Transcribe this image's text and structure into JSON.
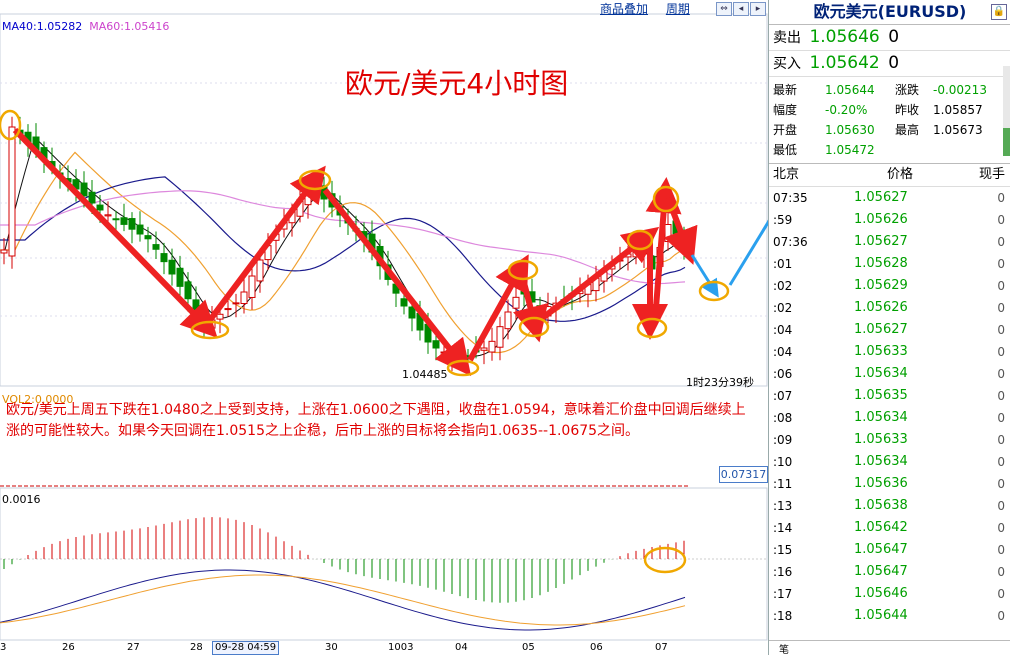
{
  "toolbar": {
    "overlay": "商品叠加",
    "period": "周期"
  },
  "ma_labels": {
    "ma40": "MA40:1.05282",
    "ma60": "MA60:1.05416",
    "ma40_color": "#0000cc",
    "ma60_color": "#cc44cc"
  },
  "annotation_title": "欧元/美元4小时图",
  "timer": "1时23分39秒",
  "low_label": "1.04485",
  "vol_label": "VOL2:0.0000",
  "commentary": "欧元/美元上周五下跌在1.0480之上受到支持，上涨在1.0600之下遇阻，收盘在1.0594，意味着汇价盘中回调后继续上涨的可能性较大。如果今天回调在1.0515之上企稳，后市上涨的目标将会指向1.0635--1.0675之间。",
  "vol_box": "0.07317",
  "macd_label": "0.0016",
  "x_axis": {
    "labels": [
      "3",
      "26",
      "27",
      "28",
      "30",
      "1003",
      "04",
      "05",
      "06",
      "07"
    ],
    "cursor_label": "09-28 04:59"
  },
  "chart_data": {
    "type": "candlestick",
    "symbol": "EURUSD",
    "timeframe": "4H",
    "low_marked": 1.04485,
    "ma40_last": 1.05282,
    "ma60_last": 1.05416,
    "colors": {
      "up": "#d40000",
      "down": "#008800",
      "ma_blue": "#1a1a8c",
      "ma_orange": "#f0a030",
      "ma_purple": "#dd88dd",
      "arrow": "#ee2222",
      "forecast": "#2aa0ee",
      "circle": "#f0a800"
    }
  },
  "panel": {
    "title": "欧元美元(EURUSD)",
    "sell_label": "卖出",
    "sell_price": "1.05646",
    "sell_qty": "0",
    "buy_label": "买入",
    "buy_price": "1.05642",
    "buy_qty": "0",
    "stats": [
      {
        "l1": "最新",
        "v1": "1.05644",
        "l2": "涨跌",
        "v2": "-0.00213"
      },
      {
        "l1": "幅度",
        "v1": "-0.20%",
        "l2": "昨收",
        "v2": "1.05857"
      },
      {
        "l1": "开盘",
        "v1": "1.05630",
        "l2": "最高",
        "v2": "1.05673"
      },
      {
        "l1": "最低",
        "v1": "1.05472",
        "l2": "",
        "v2": ""
      }
    ],
    "ticks_header": {
      "time": "北京",
      "price": "价格",
      "qty": "现手"
    },
    "ticks": [
      {
        "t": "07:35",
        "p": "1.05627",
        "q": "0"
      },
      {
        "t": ":59",
        "p": "1.05626",
        "q": "0"
      },
      {
        "t": "07:36",
        "p": "1.05627",
        "q": "0"
      },
      {
        "t": ":01",
        "p": "1.05628",
        "q": "0"
      },
      {
        "t": ":02",
        "p": "1.05629",
        "q": "0"
      },
      {
        "t": ":02",
        "p": "1.05626",
        "q": "0"
      },
      {
        "t": ":04",
        "p": "1.05627",
        "q": "0"
      },
      {
        "t": ":04",
        "p": "1.05633",
        "q": "0"
      },
      {
        "t": ":06",
        "p": "1.05634",
        "q": "0"
      },
      {
        "t": ":07",
        "p": "1.05635",
        "q": "0"
      },
      {
        "t": ":08",
        "p": "1.05634",
        "q": "0"
      },
      {
        "t": ":09",
        "p": "1.05633",
        "q": "0"
      },
      {
        "t": ":10",
        "p": "1.05634",
        "q": "0"
      },
      {
        "t": ":11",
        "p": "1.05636",
        "q": "0"
      },
      {
        "t": ":13",
        "p": "1.05638",
        "q": "0"
      },
      {
        "t": ":14",
        "p": "1.05642",
        "q": "0"
      },
      {
        "t": ":15",
        "p": "1.05647",
        "q": "0"
      },
      {
        "t": ":16",
        "p": "1.05647",
        "q": "0"
      },
      {
        "t": ":17",
        "p": "1.05646",
        "q": "0"
      },
      {
        "t": ":18",
        "p": "1.05644",
        "q": "0"
      }
    ],
    "bottom_label": "笔"
  }
}
